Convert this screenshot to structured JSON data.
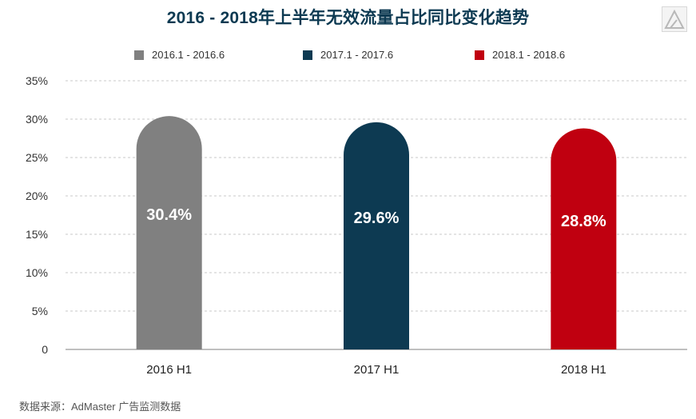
{
  "title": "2016 - 2018年上半年无效流量占比同比变化趋势",
  "source": "数据来源：AdMaster 广告监测数据",
  "logo_icon": "admaster-triangle-logo-icon",
  "chart_data": {
    "type": "bar",
    "title": "2016 - 2018年上半年无效流量占比同比变化趋势",
    "categories": [
      "2016 H1",
      "2017 H1",
      "2018 H1"
    ],
    "series": [
      {
        "name": "2016.1 - 2016.6",
        "color": "#808080",
        "category_index": 0,
        "value": 30.4,
        "label": "30.4%"
      },
      {
        "name": "2017.1 - 2017.6",
        "color": "#0d3a52",
        "category_index": 1,
        "value": 29.6,
        "label": "29.6%"
      },
      {
        "name": "2018.1 - 2018.6",
        "color": "#c00010",
        "category_index": 2,
        "value": 28.8,
        "label": "28.8%"
      }
    ],
    "y_ticks": [
      "0",
      "5%",
      "10%",
      "15%",
      "20%",
      "25%",
      "30%",
      "35%"
    ],
    "ylim": [
      0,
      35
    ],
    "grid": true,
    "grid_style": "dashed",
    "legend_position": "top",
    "xlabel": "",
    "ylabel": ""
  }
}
